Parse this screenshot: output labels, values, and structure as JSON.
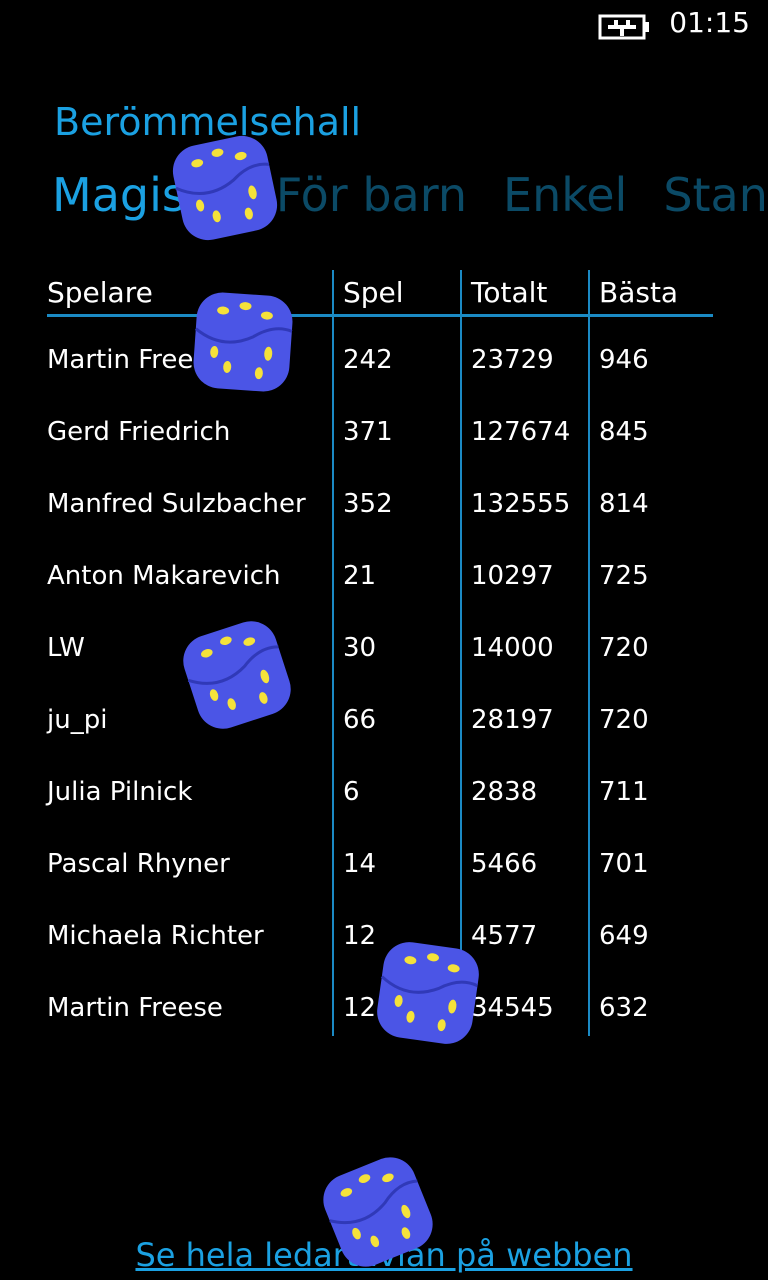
{
  "status_bar": {
    "time": "01:15"
  },
  "header": {
    "title": "Berömmelsehall",
    "tabs": [
      "Magiska",
      "För barn",
      "Enkel",
      "Standard"
    ]
  },
  "table": {
    "columns": [
      "Spelare",
      "Spel",
      "Totalt",
      "Bästa"
    ],
    "rows": [
      [
        "Martin Freese",
        242,
        23729,
        946
      ],
      [
        "Gerd Friedrich",
        371,
        127674,
        845
      ],
      [
        "Manfred Sulzbacher",
        352,
        132555,
        814
      ],
      [
        "Anton Makarevich",
        21,
        10297,
        725
      ],
      [
        "LW",
        30,
        14000,
        720
      ],
      [
        "ju_pi",
        66,
        28197,
        720
      ],
      [
        "Julia Pilnick",
        6,
        2838,
        711
      ],
      [
        "Pascal Rhyner",
        14,
        5466,
        701
      ],
      [
        "Michaela Richter",
        12,
        4577,
        649
      ],
      [
        "Martin Freese",
        121,
        34545,
        632
      ]
    ]
  },
  "footer": {
    "link": "Se hela ledartavlan på webben"
  }
}
